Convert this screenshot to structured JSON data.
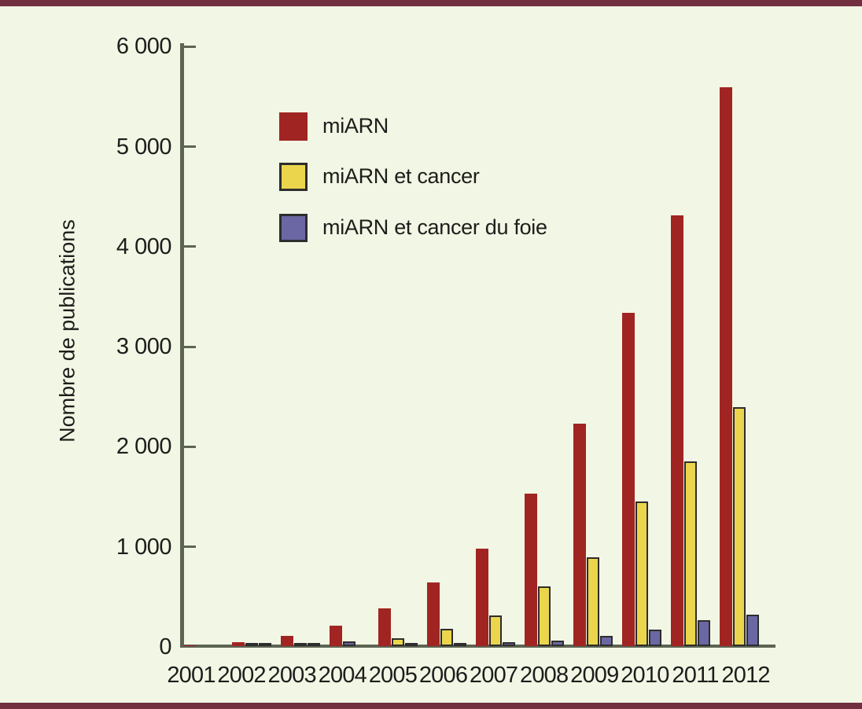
{
  "colors": {
    "background": "#f2f6e4",
    "frame_border": "#712f3f",
    "axis": "#5c6453",
    "text": "#1d1d1b",
    "bar_outline": "#2d2d2d"
  },
  "chart_data": {
    "type": "bar",
    "title": "",
    "xlabel": "",
    "ylabel": "Nombre de publications",
    "ylim": [
      0,
      6000
    ],
    "ytick_step": 1000,
    "ytick_labels": [
      "0",
      "1 000",
      "2 000",
      "3 000",
      "4 000",
      "5 000",
      "6 000"
    ],
    "grid": false,
    "legend_position": "upper-left-inside",
    "categories": [
      "2001",
      "2002",
      "2003",
      "2004",
      "2005",
      "2006",
      "2007",
      "2008",
      "2009",
      "2010",
      "2011",
      "2012"
    ],
    "series": [
      {
        "key": "miarn",
        "name": "miARN",
        "color": "#a02522",
        "outlined": false,
        "values": [
          10,
          40,
          100,
          205,
          380,
          640,
          970,
          1520,
          2220,
          3330,
          4300,
          5580
        ]
      },
      {
        "key": "miarn-cancer",
        "name": "miARN et cancer",
        "color": "#ebd54d",
        "outlined": true,
        "values": [
          0,
          5,
          10,
          0,
          60,
          155,
          290,
          580,
          870,
          1430,
          1830,
          2370
        ]
      },
      {
        "key": "miarn-cancer-foie",
        "name": "miARN et cancer du foie",
        "color": "#6b67a4",
        "outlined": true,
        "values": [
          0,
          5,
          5,
          30,
          5,
          10,
          20,
          40,
          90,
          150,
          245,
          295
        ]
      }
    ]
  }
}
